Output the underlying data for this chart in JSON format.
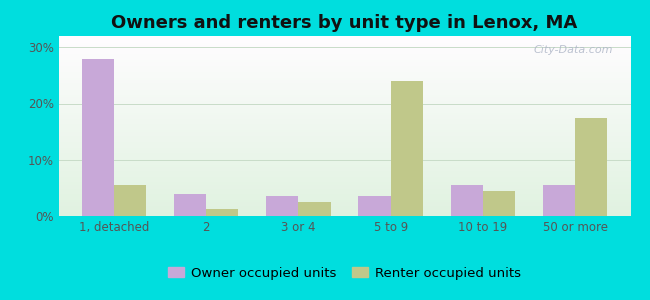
{
  "title": "Owners and renters by unit type in Lenox, MA",
  "categories": [
    "1, detached",
    "2",
    "3 or 4",
    "5 to 9",
    "10 to 19",
    "50 or more"
  ],
  "owner_values": [
    28.0,
    4.0,
    3.5,
    3.5,
    5.5,
    5.5
  ],
  "renter_values": [
    5.5,
    1.2,
    2.5,
    24.0,
    4.5,
    17.5
  ],
  "owner_color": "#c8a8d8",
  "renter_color": "#c0c88a",
  "bg_color": "#00dede",
  "title_fontsize": 13,
  "tick_fontsize": 8.5,
  "legend_fontsize": 9.5,
  "ylim": [
    0,
    32
  ],
  "yticks": [
    0,
    10,
    20,
    30
  ],
  "ytick_labels": [
    "0%",
    "10%",
    "20%",
    "30%"
  ],
  "bar_width": 0.35,
  "watermark": "City-Data.com"
}
